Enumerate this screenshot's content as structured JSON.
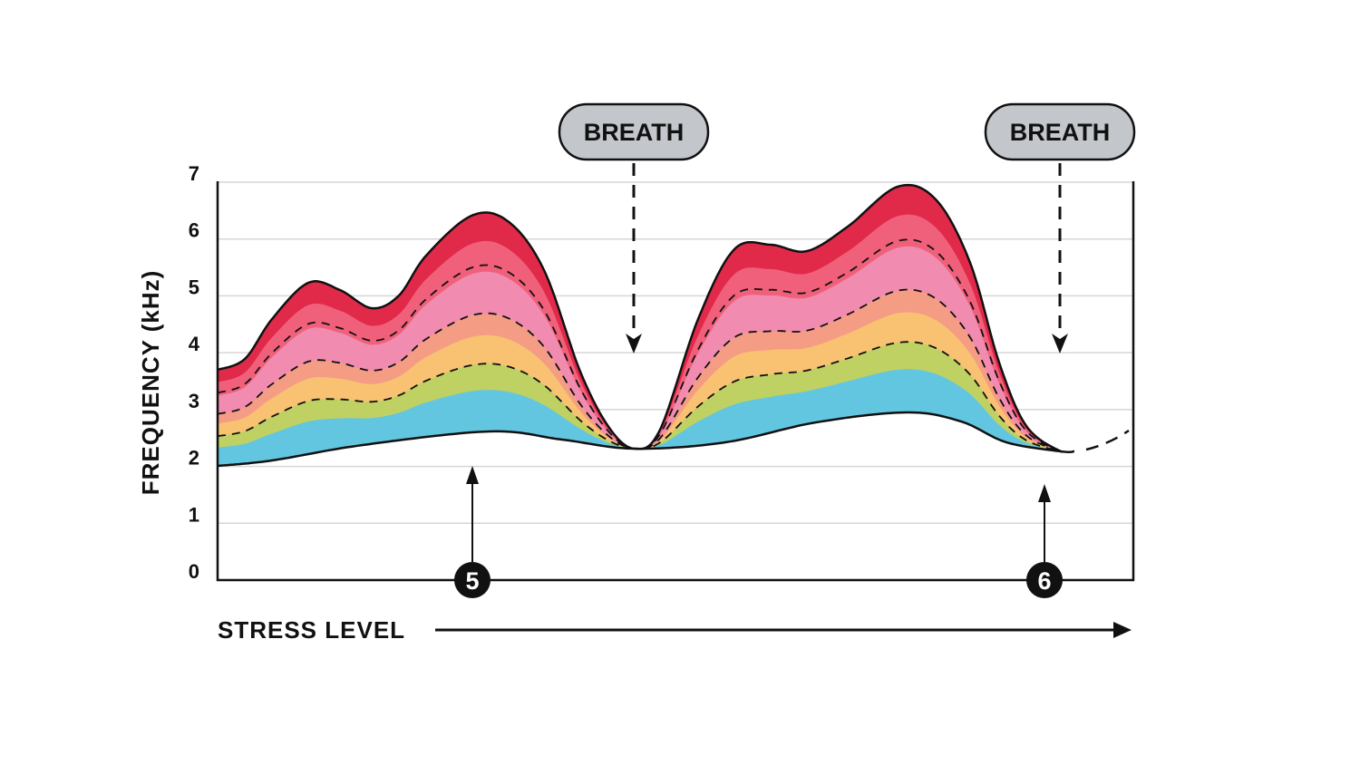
{
  "chart_data": {
    "type": "area",
    "title": "",
    "xlabel": "STRESS LEVEL",
    "ylabel": "FREQUENCY (kHz)",
    "ylim": [
      0,
      7
    ],
    "yticks": [
      "0",
      "1",
      "2",
      "3",
      "4",
      "5",
      "6",
      "7"
    ],
    "grid": true,
    "band_colors": [
      "#62c6e0",
      "#bfd162",
      "#f8c272",
      "#f59c85",
      "#f28bb0",
      "#f0607a",
      "#e12a4a"
    ],
    "annotations": [
      {
        "label": "BREATH",
        "type": "callout-arrow-down"
      },
      {
        "label": "BREATH",
        "type": "callout-arrow-down"
      }
    ],
    "markers": [
      "5",
      "6"
    ]
  }
}
